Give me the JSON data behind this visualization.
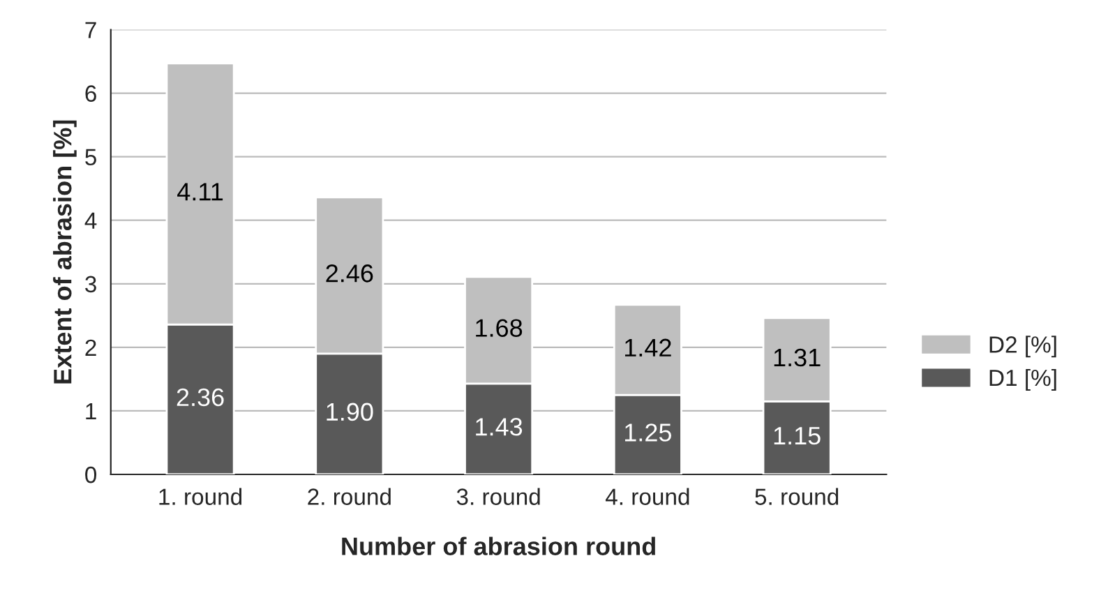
{
  "chart_data": {
    "type": "bar",
    "stacked": true,
    "xlabel": "Number of abrasion round",
    "ylabel": "Extent of abrasion [%]",
    "categories": [
      "1. round",
      "2. round",
      "3. round",
      "4. round",
      "5. round"
    ],
    "series": [
      {
        "name": "D1 [%]",
        "color": "#595959",
        "values": [
          2.36,
          1.9,
          1.43,
          1.25,
          1.15
        ],
        "value_labels": [
          "2.36",
          "1.90",
          "1.43",
          "1.25",
          "1.15"
        ]
      },
      {
        "name": "D2 [%]",
        "color": "#bfbfbf",
        "values": [
          4.11,
          2.46,
          1.68,
          1.42,
          1.31
        ],
        "value_labels": [
          "4.11",
          "2.46",
          "1.68",
          "1.42",
          "1.31"
        ]
      }
    ],
    "ylim": [
      0,
      7
    ],
    "yticks": [
      0,
      1,
      2,
      3,
      4,
      5,
      6,
      7
    ],
    "grid": "y",
    "legend": "right"
  }
}
